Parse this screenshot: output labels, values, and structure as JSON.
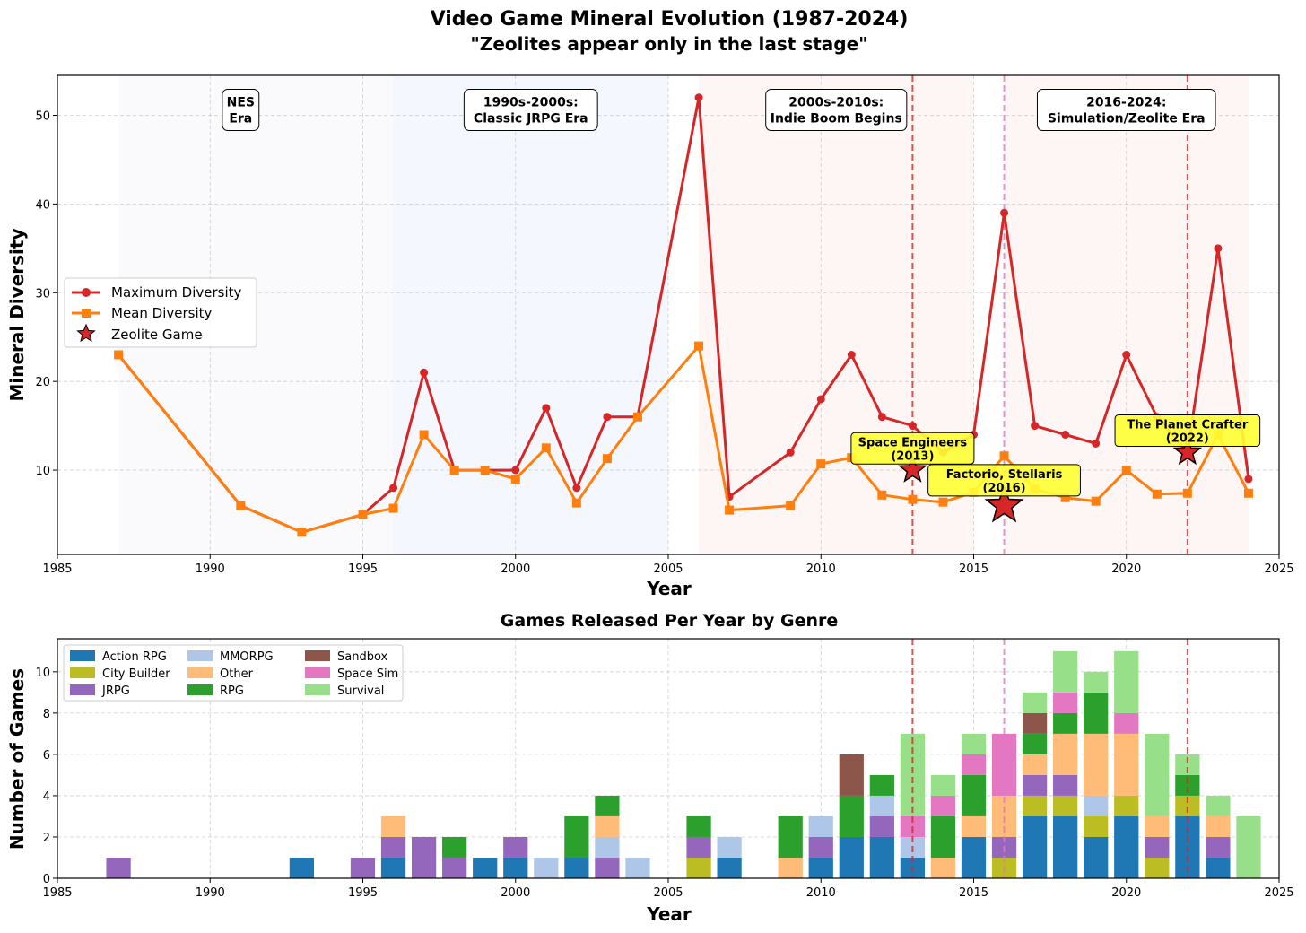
{
  "colors": {
    "max": "#d62728",
    "mean": "#ff7f0e",
    "zeolite_line_a": "#d62728",
    "zeolite_line_b": "#e377c2",
    "star_fill": "#d62728",
    "annot_fill": "#ffff33"
  },
  "chart_data": [
    {
      "type": "line",
      "title": "Video Game Mineral Evolution (1987-2024)",
      "subtitle": "\"Zeolites appear only in the last stage\"",
      "xlabel": "Year",
      "ylabel": "Mineral Diversity",
      "xlim": [
        1985,
        2025
      ],
      "ylim": [
        0.5,
        54.5
      ],
      "xticks": [
        1985,
        1990,
        1995,
        2000,
        2005,
        2010,
        2015,
        2020,
        2025
      ],
      "yticks": [
        10,
        20,
        30,
        40,
        50
      ],
      "grid": true,
      "legend_position": "center-left",
      "legend": [
        "Maximum Diversity",
        "Mean Diversity",
        "Zeolite Game"
      ],
      "eras": [
        {
          "label_line1": "NES",
          "label_line2": "Era",
          "from": 1987,
          "to": 1996,
          "label_x": 1991,
          "color": "#eeeef7",
          "opacity": 0.3
        },
        {
          "label_line1": "1990s-2000s:",
          "label_line2": "Classic JRPG Era",
          "from": 1996,
          "to": 2005,
          "label_x": 2000.5,
          "color": "#dbe6f7",
          "opacity": 0.3
        },
        {
          "label_line1": "2000s-2010s:",
          "label_line2": "Indie Boom Begins",
          "from": 2006,
          "to": 2015,
          "label_x": 2010.5,
          "color": "#fbe0dc",
          "opacity": 0.3
        },
        {
          "label_line1": "2016-2024:",
          "label_line2": "Simulation/Zeolite Era",
          "from": 2016,
          "to": 2024,
          "label_x": 2020,
          "color": "#fbe0dc",
          "opacity": 0.3
        }
      ],
      "era_label_y": 50.3,
      "series": [
        {
          "name": "Maximum Diversity",
          "x": [
            1987,
            1991,
            1993,
            1995,
            1996,
            1997,
            1998,
            1999,
            2000,
            2001,
            2002,
            2003,
            2004,
            2006,
            2007,
            2009,
            2010,
            2011,
            2012,
            2013,
            2014,
            2015,
            2016,
            2017,
            2018,
            2019,
            2020,
            2021,
            2022,
            2023,
            2024
          ],
          "values": [
            23,
            6,
            3,
            5,
            8,
            21,
            10,
            10,
            10,
            17,
            8,
            16,
            16,
            52,
            7,
            12,
            18,
            23,
            16,
            15,
            12,
            14,
            39,
            15,
            14,
            13,
            23,
            16,
            12,
            35,
            9
          ]
        },
        {
          "name": "Mean Diversity",
          "x": [
            1987,
            1991,
            1993,
            1995,
            1996,
            1997,
            1998,
            1999,
            2000,
            2001,
            2002,
            2003,
            2004,
            2006,
            2007,
            2009,
            2010,
            2011,
            2012,
            2013,
            2014,
            2015,
            2016,
            2017,
            2018,
            2019,
            2020,
            2021,
            2022,
            2023,
            2024
          ],
          "values": [
            23,
            6,
            3,
            5,
            5.7,
            14,
            10,
            10,
            9,
            12.5,
            6.3,
            11.3,
            16,
            24,
            5.5,
            6,
            10.7,
            11.4,
            7.2,
            6.7,
            6.4,
            7.5,
            11.6,
            7.9,
            6.9,
            6.5,
            10,
            7.3,
            7.4,
            14,
            7.4
          ]
        }
      ],
      "zeolite_games": [
        {
          "label_line1": "Space Engineers",
          "label_line2": "(2013)",
          "x": 2013,
          "y": 10,
          "label_x": 2013,
          "label_y": 12.2,
          "line_color": "#d62728",
          "star_size": 1
        },
        {
          "label_line1": "Factorio, Stellaris",
          "label_line2": "(2016)",
          "x": 2016,
          "y": 6,
          "label_x": 2016,
          "label_y": 8.6,
          "line_color": "#e377c2",
          "star_size": 1.4
        },
        {
          "label_line1": "The Planet Crafter",
          "label_line2": "(2022)",
          "x": 2022,
          "y": 12,
          "label_x": 2022,
          "label_y": 14.2,
          "line_color": "#d62728",
          "star_size": 1
        }
      ]
    },
    {
      "type": "bar",
      "stacked": true,
      "title": "Games Released Per Year by Genre",
      "xlabel": "Year",
      "ylabel": "Number of Games",
      "xlim": [
        1985,
        2025
      ],
      "ylim": [
        0,
        11.6
      ],
      "xticks": [
        1985,
        1990,
        1995,
        2000,
        2005,
        2010,
        2015,
        2020,
        2025
      ],
      "yticks": [
        0,
        2,
        4,
        6,
        8,
        10
      ],
      "grid": true,
      "legend_position": "upper-left",
      "zeolite_lines": [
        {
          "x": 2013,
          "color": "#d62728"
        },
        {
          "x": 2016,
          "color": "#e377c2"
        },
        {
          "x": 2022,
          "color": "#d62728"
        }
      ],
      "genres": [
        {
          "name": "Action RPG",
          "color": "#1f77b4"
        },
        {
          "name": "City Builder",
          "color": "#bcbd22"
        },
        {
          "name": "JRPG",
          "color": "#9467bd"
        },
        {
          "name": "MMORPG",
          "color": "#aec7e8"
        },
        {
          "name": "Other",
          "color": "#ffbb78"
        },
        {
          "name": "RPG",
          "color": "#2ca02c"
        },
        {
          "name": "Sandbox",
          "color": "#8c564b"
        },
        {
          "name": "Space Sim",
          "color": "#e377c2"
        },
        {
          "name": "Survival",
          "color": "#98df8a"
        }
      ],
      "years": [
        1987,
        1993,
        1995,
        1996,
        1997,
        1998,
        1999,
        2000,
        2001,
        2002,
        2003,
        2004,
        2006,
        2007,
        2009,
        2010,
        2011,
        2012,
        2013,
        2014,
        2015,
        2016,
        2017,
        2018,
        2019,
        2020,
        2021,
        2022,
        2023,
        2024
      ],
      "series": [
        {
          "name": "Action RPG",
          "values": [
            0,
            1,
            0,
            1,
            0,
            0,
            1,
            1,
            0,
            1,
            0,
            0,
            0,
            1,
            0,
            1,
            2,
            2,
            1,
            0,
            2,
            0,
            3,
            3,
            2,
            3,
            0,
            3,
            1,
            0
          ]
        },
        {
          "name": "City Builder",
          "values": [
            0,
            0,
            0,
            0,
            0,
            0,
            0,
            0,
            0,
            0,
            0,
            0,
            1,
            0,
            0,
            0,
            0,
            0,
            0,
            0,
            0,
            1,
            1,
            1,
            1,
            1,
            1,
            1,
            0,
            0
          ]
        },
        {
          "name": "JRPG",
          "values": [
            1,
            0,
            1,
            1,
            2,
            1,
            0,
            1,
            0,
            0,
            1,
            0,
            1,
            0,
            0,
            1,
            0,
            1,
            0,
            0,
            0,
            1,
            1,
            1,
            0,
            0,
            1,
            0,
            1,
            0
          ]
        },
        {
          "name": "MMORPG",
          "values": [
            0,
            0,
            0,
            0,
            0,
            0,
            0,
            0,
            1,
            0,
            1,
            1,
            0,
            1,
            0,
            1,
            0,
            1,
            1,
            0,
            0,
            0,
            0,
            0,
            1,
            0,
            0,
            0,
            0,
            0
          ]
        },
        {
          "name": "Other",
          "values": [
            0,
            0,
            0,
            1,
            0,
            0,
            0,
            0,
            0,
            0,
            1,
            0,
            0,
            0,
            1,
            0,
            0,
            0,
            0,
            1,
            1,
            2,
            1,
            2,
            3,
            3,
            1,
            0,
            1,
            0
          ]
        },
        {
          "name": "RPG",
          "values": [
            0,
            0,
            0,
            0,
            0,
            1,
            0,
            0,
            0,
            2,
            1,
            0,
            1,
            0,
            2,
            0,
            2,
            1,
            0,
            2,
            2,
            0,
            1,
            1,
            2,
            0,
            0,
            1,
            0,
            0
          ]
        },
        {
          "name": "Sandbox",
          "values": [
            0,
            0,
            0,
            0,
            0,
            0,
            0,
            0,
            0,
            0,
            0,
            0,
            0,
            0,
            0,
            0,
            2,
            0,
            0,
            0,
            0,
            0,
            1,
            0,
            0,
            0,
            0,
            0,
            0,
            0
          ]
        },
        {
          "name": "Space Sim",
          "values": [
            0,
            0,
            0,
            0,
            0,
            0,
            0,
            0,
            0,
            0,
            0,
            0,
            0,
            0,
            0,
            0,
            0,
            0,
            1,
            1,
            1,
            3,
            0,
            1,
            0,
            1,
            0,
            0,
            0,
            0
          ]
        },
        {
          "name": "Survival",
          "values": [
            0,
            0,
            0,
            0,
            0,
            0,
            0,
            0,
            0,
            0,
            0,
            0,
            0,
            0,
            0,
            0,
            0,
            0,
            4,
            1,
            1,
            0,
            1,
            2,
            1,
            3,
            4,
            1,
            1,
            3
          ]
        }
      ]
    }
  ]
}
